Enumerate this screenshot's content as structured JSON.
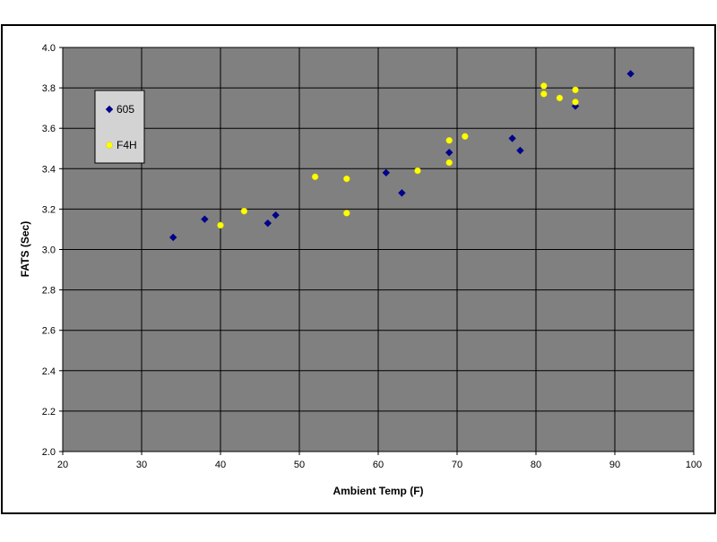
{
  "chart_data": {
    "type": "scatter",
    "title": "",
    "xlabel": "Ambient Temp (F)",
    "ylabel": "FATS (Sec)",
    "xlim": [
      20,
      100
    ],
    "ylim": [
      2.0,
      4.0
    ],
    "x_ticks": [
      "20",
      "30",
      "40",
      "50",
      "60",
      "70",
      "80",
      "90",
      "100"
    ],
    "y_ticks": [
      "2.0",
      "2.2",
      "2.4",
      "2.6",
      "2.8",
      "3.0",
      "3.2",
      "3.4",
      "3.6",
      "3.8",
      "4.0"
    ],
    "grid": true,
    "legend_position": "left",
    "plot_background": "#808080",
    "series": [
      {
        "name": "605",
        "color": "#00008b",
        "marker": "diamond",
        "points": [
          {
            "x": 34,
            "y": 3.06
          },
          {
            "x": 38,
            "y": 3.15
          },
          {
            "x": 46,
            "y": 3.13
          },
          {
            "x": 47,
            "y": 3.17
          },
          {
            "x": 61,
            "y": 3.38
          },
          {
            "x": 63,
            "y": 3.28
          },
          {
            "x": 69,
            "y": 3.48
          },
          {
            "x": 77,
            "y": 3.55
          },
          {
            "x": 78,
            "y": 3.49
          },
          {
            "x": 85,
            "y": 3.71
          },
          {
            "x": 92,
            "y": 3.87
          }
        ]
      },
      {
        "name": "F4H",
        "color": "#ffff00",
        "marker": "circle",
        "points": [
          {
            "x": 40,
            "y": 3.12
          },
          {
            "x": 43,
            "y": 3.19
          },
          {
            "x": 52,
            "y": 3.36
          },
          {
            "x": 56,
            "y": 3.35
          },
          {
            "x": 56,
            "y": 3.18
          },
          {
            "x": 65,
            "y": 3.39
          },
          {
            "x": 69,
            "y": 3.54
          },
          {
            "x": 69,
            "y": 3.43
          },
          {
            "x": 71,
            "y": 3.56
          },
          {
            "x": 81,
            "y": 3.81
          },
          {
            "x": 81,
            "y": 3.77
          },
          {
            "x": 83,
            "y": 3.75
          },
          {
            "x": 85,
            "y": 3.79
          },
          {
            "x": 85,
            "y": 3.73
          }
        ]
      }
    ]
  }
}
